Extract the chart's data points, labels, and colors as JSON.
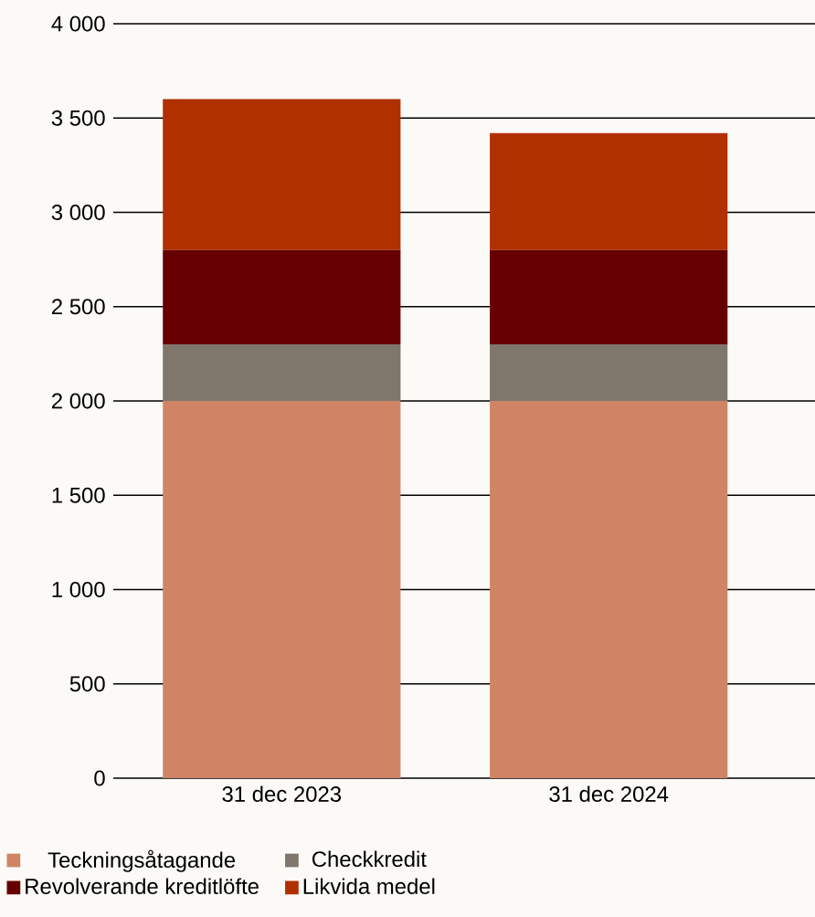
{
  "chart_data": {
    "type": "bar",
    "stacked": true,
    "categories": [
      "31 dec 2023",
      "31 dec 2024"
    ],
    "series": [
      {
        "name": "Teckningsåtagande",
        "color": "#d08466",
        "values": [
          2000,
          2000
        ]
      },
      {
        "name": "Checkkredit",
        "color": "#7f776b",
        "values": [
          300,
          300
        ]
      },
      {
        "name": "Revolverande kreditlöfte",
        "color": "#660000",
        "values": [
          500,
          500
        ]
      },
      {
        "name": "Likvida medel",
        "color": "#b03000",
        "values": [
          800,
          620
        ]
      }
    ],
    "ylim": [
      0,
      4000
    ],
    "yticks": [
      {
        "value": 0,
        "label": "0"
      },
      {
        "value": 500,
        "label": "500"
      },
      {
        "value": 1000,
        "label": "1 000"
      },
      {
        "value": 1500,
        "label": "1 500"
      },
      {
        "value": 2000,
        "label": "2 000"
      },
      {
        "value": 2500,
        "label": "2 500"
      },
      {
        "value": 3000,
        "label": "3 000"
      },
      {
        "value": 3500,
        "label": "3 500"
      },
      {
        "value": 4000,
        "label": "4 000"
      }
    ],
    "grid": "y",
    "legend": "bottom"
  }
}
